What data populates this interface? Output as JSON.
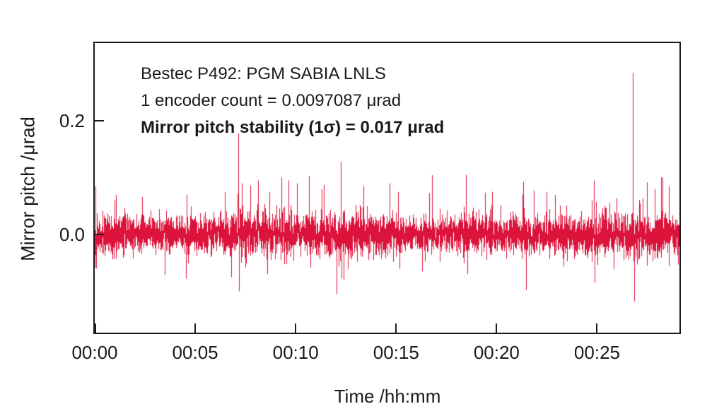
{
  "chart_data": {
    "type": "line",
    "xlabel": "Time /hh:mm",
    "ylabel": "Mirror pitch /μrad",
    "annotations": [
      "Bestec P492: PGM SABIA LNLS",
      "1 encoder count = 0.0097087 μrad",
      "Mirror pitch stability (1σ) = 0.017 μrad"
    ],
    "x_tick_labels": [
      "00:00",
      "00:05",
      "00:10",
      "00:15",
      "00:20",
      "00:25"
    ],
    "x_tick_minutes": [
      0,
      5,
      10,
      15,
      20,
      25
    ],
    "xlim_minutes": [
      0,
      29.1
    ],
    "y_tick_labels": [
      "0.2",
      "0.0"
    ],
    "y_tick_values": [
      0.2,
      0.0
    ],
    "ylim": [
      -0.173,
      0.337
    ],
    "grid": false,
    "legend": null,
    "series": [
      {
        "name": "mirror-pitch-trace",
        "color": "#dc143c",
        "noise_sigma_urad": 0.017,
        "samples": 5200,
        "seed": 42,
        "burst_probability": 0.025,
        "burst_scale": 2.3,
        "envelope": [
          [
            0,
            1.05
          ],
          [
            1.5,
            0.95
          ],
          [
            4,
            0.9
          ],
          [
            6,
            1.05
          ],
          [
            7.5,
            1.15
          ],
          [
            9,
            1.1
          ],
          [
            11,
            1.0
          ],
          [
            12.5,
            1.15
          ],
          [
            14,
            1.0
          ],
          [
            16,
            0.85
          ],
          [
            17.5,
            0.9
          ],
          [
            19,
            1.0
          ],
          [
            21,
            0.95
          ],
          [
            23,
            1.0
          ],
          [
            25,
            1.15
          ],
          [
            27,
            1.1
          ],
          [
            29.1,
            1.05
          ]
        ],
        "spikes": [
          {
            "t": 0.05,
            "v": 0.085
          },
          {
            "t": 0.1,
            "v": -0.06
          },
          {
            "t": 1.0,
            "v": 0.06
          },
          {
            "t": 4.55,
            "v": -0.078
          },
          {
            "t": 4.6,
            "v": 0.07
          },
          {
            "t": 6.5,
            "v": 0.075
          },
          {
            "t": 7.15,
            "v": 0.178
          },
          {
            "t": 7.2,
            "v": -0.1
          },
          {
            "t": 7.35,
            "v": 0.09
          },
          {
            "t": 8.15,
            "v": 0.095
          },
          {
            "t": 8.6,
            "v": -0.07
          },
          {
            "t": 9.3,
            "v": 0.1
          },
          {
            "t": 9.65,
            "v": 0.095
          },
          {
            "t": 10.1,
            "v": 0.09
          },
          {
            "t": 11.3,
            "v": 0.08
          },
          {
            "t": 12.05,
            "v": -0.105
          },
          {
            "t": 12.25,
            "v": 0.128
          },
          {
            "t": 12.4,
            "v": -0.08
          },
          {
            "t": 13.4,
            "v": 0.085
          },
          {
            "t": 14.7,
            "v": 0.09
          },
          {
            "t": 15.1,
            "v": 0.075
          },
          {
            "t": 16.3,
            "v": -0.065
          },
          {
            "t": 18.5,
            "v": 0.105
          },
          {
            "t": 18.55,
            "v": -0.07
          },
          {
            "t": 19.8,
            "v": 0.075
          },
          {
            "t": 21.3,
            "v": 0.07
          },
          {
            "t": 21.5,
            "v": -0.098
          },
          {
            "t": 22.5,
            "v": 0.075
          },
          {
            "t": 24.85,
            "v": 0.095
          },
          {
            "t": 24.9,
            "v": -0.085
          },
          {
            "t": 26.8,
            "v": 0.285
          },
          {
            "t": 26.85,
            "v": -0.118
          },
          {
            "t": 27.9,
            "v": 0.08
          },
          {
            "t": 28.6,
            "v": 0.085
          }
        ]
      }
    ],
    "colors": {
      "trace": "#dc143c",
      "axis": "#1a1a1a",
      "background": "#ffffff"
    }
  }
}
